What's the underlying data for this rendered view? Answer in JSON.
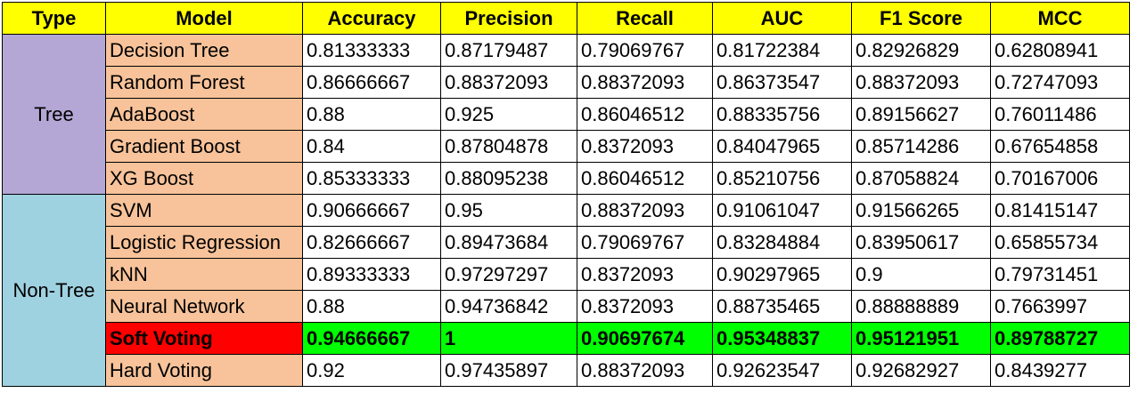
{
  "columns": [
    "Type",
    "Model",
    "Accuracy",
    "Precision",
    "Recall",
    "AUC",
    "F1 Score",
    "MCC"
  ],
  "colors": {
    "header_bg": "#ffff00",
    "model_bg": "#f8c39a",
    "tree_bg": "#b4a7d6",
    "nontree_bg": "#9fd2e0",
    "highlight_row_bg": "#00ff00",
    "highlight_model_bg": "#ff0000"
  },
  "groups": [
    {
      "type": "Tree",
      "rows": [
        {
          "model": "Decision Tree",
          "accuracy": "0.81333333",
          "precision": "0.87179487",
          "recall": "0.79069767",
          "auc": "0.81722384",
          "f1": "0.82926829",
          "mcc": "0.62808941"
        },
        {
          "model": "Random Forest",
          "accuracy": "0.86666667",
          "precision": "0.88372093",
          "recall": "0.88372093",
          "auc": "0.86373547",
          "f1": "0.88372093",
          "mcc": "0.72747093"
        },
        {
          "model": "AdaBoost",
          "accuracy": "0.88",
          "precision": "0.925",
          "recall": "0.86046512",
          "auc": "0.88335756",
          "f1": "0.89156627",
          "mcc": "0.76011486"
        },
        {
          "model": "Gradient Boost",
          "accuracy": "0.84",
          "precision": "0.87804878",
          "recall": "0.8372093",
          "auc": "0.84047965",
          "f1": "0.85714286",
          "mcc": "0.67654858"
        },
        {
          "model": "XG Boost",
          "accuracy": "0.85333333",
          "precision": "0.88095238",
          "recall": "0.86046512",
          "auc": "0.85210756",
          "f1": "0.87058824",
          "mcc": "0.70167006"
        }
      ]
    },
    {
      "type": "Non-Tree",
      "rows": [
        {
          "model": "SVM",
          "accuracy": "0.90666667",
          "precision": "0.95",
          "recall": "0.88372093",
          "auc": "0.91061047",
          "f1": "0.91566265",
          "mcc": "0.81415147"
        },
        {
          "model": "Logistic Regression",
          "accuracy": "0.82666667",
          "precision": "0.89473684",
          "recall": "0.79069767",
          "auc": "0.83284884",
          "f1": "0.83950617",
          "mcc": "0.65855734"
        },
        {
          "model": "kNN",
          "accuracy": "0.89333333",
          "precision": "0.97297297",
          "recall": "0.8372093",
          "auc": "0.90297965",
          "f1": "0.9",
          "mcc": "0.79731451"
        },
        {
          "model": "Neural Network",
          "accuracy": "0.88",
          "precision": "0.94736842",
          "recall": "0.8372093",
          "auc": "0.88735465",
          "f1": "0.88888889",
          "mcc": "0.7663997"
        },
        {
          "model": "Soft Voting",
          "accuracy": "0.94666667",
          "precision": "1",
          "recall": "0.90697674",
          "auc": "0.95348837",
          "f1": "0.95121951",
          "mcc": "0.89788727",
          "highlight": true
        },
        {
          "model": "Hard Voting",
          "accuracy": "0.92",
          "precision": "0.97435897",
          "recall": "0.88372093",
          "auc": "0.92623547",
          "f1": "0.92682927",
          "mcc": "0.8439277"
        }
      ]
    }
  ]
}
